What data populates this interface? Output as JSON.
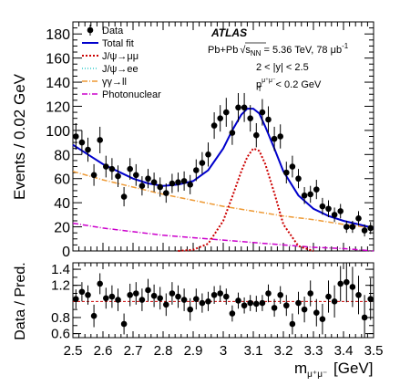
{
  "chart_data": {
    "type": "scatter",
    "xlim": [
      2.5,
      3.5
    ],
    "x_ticks": [
      2.5,
      2.6,
      2.7,
      2.8,
      2.9,
      3.0,
      3.1,
      3.2,
      3.3,
      3.4,
      3.5
    ],
    "x_tick_labels": [
      "2.5",
      "2.6",
      "2.7",
      "2.8",
      "2.9",
      "3",
      "3.1",
      "3.2",
      "3.3",
      "3.4",
      "3.5"
    ],
    "xlabel_main": "m",
    "xlabel_sub": "μ⁺μ⁻",
    "xlabel_unit": "[GeV]",
    "top": {
      "ylabel": "Events / 0.02 GeV",
      "ylim": [
        0,
        190
      ],
      "y_ticks": [
        0,
        20,
        40,
        60,
        80,
        100,
        120,
        140,
        160,
        180
      ],
      "y_tick_labels": [
        "0",
        "20",
        "40",
        "60",
        "80",
        "100",
        "120",
        "140",
        "160",
        "180"
      ]
    },
    "bottom": {
      "ylabel": "Data / Pred.",
      "ylim": [
        0.55,
        1.48
      ],
      "y_ticks": [
        0.6,
        0.8,
        1.2,
        1.4
      ],
      "y_tick_labels": [
        "0.6",
        "0.8",
        "1.2",
        "1.4"
      ],
      "reference_line": 1.0
    },
    "annotations": {
      "experiment": "ATLAS",
      "system": "Pb+Pb",
      "sqrt_label": "s",
      "sqrt_sub": "NN",
      "energy": " = 5.36 TeV, 78 μb",
      "lumi_exp": "-1",
      "rapidity_cut": "2 < |y| < 2.5",
      "pt_symbol": "p",
      "pt_sup": "μ⁺μ⁻",
      "pt_sub": "T",
      "pt_cut": " < 0.2 GeV"
    },
    "legend": [
      {
        "key": "data",
        "label": "Data",
        "color": "#000000"
      },
      {
        "key": "total",
        "label": "Total fit",
        "color": "#0000cc"
      },
      {
        "key": "jpsi_mumu",
        "label": "J/ψ→μμ",
        "color": "#cc0000"
      },
      {
        "key": "jpsi_ee",
        "label": "J/ψ→ee",
        "color": "#33cccc"
      },
      {
        "key": "gg_ll",
        "label": "γγ→ll",
        "color": "#ee9933"
      },
      {
        "key": "photonuclear",
        "label": "Photonuclear",
        "color": "#cc00cc"
      }
    ],
    "data": {
      "x": [
        2.51,
        2.53,
        2.55,
        2.57,
        2.59,
        2.61,
        2.63,
        2.65,
        2.67,
        2.69,
        2.71,
        2.73,
        2.75,
        2.77,
        2.79,
        2.81,
        2.83,
        2.85,
        2.87,
        2.89,
        2.91,
        2.93,
        2.95,
        2.97,
        2.99,
        3.01,
        3.03,
        3.05,
        3.07,
        3.09,
        3.11,
        3.13,
        3.15,
        3.17,
        3.19,
        3.21,
        3.23,
        3.25,
        3.27,
        3.29,
        3.31,
        3.33,
        3.35,
        3.37,
        3.39,
        3.41,
        3.43,
        3.45,
        3.47,
        3.49
      ],
      "y": [
        95,
        90,
        84,
        63,
        92,
        70,
        68,
        62,
        45,
        68,
        63,
        54,
        60,
        57,
        53,
        48,
        56,
        57,
        58,
        55,
        67,
        73,
        80,
        104,
        110,
        115,
        98,
        119,
        119,
        110,
        96,
        115,
        109,
        93,
        95,
        65,
        70,
        60,
        46,
        47,
        51,
        37,
        35,
        30,
        33,
        20,
        20,
        27,
        17,
        19
      ],
      "yerr": [
        11,
        10,
        10,
        9,
        11,
        9,
        9,
        9,
        8,
        9,
        9,
        8,
        8,
        8,
        8,
        8,
        8,
        8,
        8,
        8,
        9,
        9,
        10,
        11,
        11,
        12,
        10,
        12,
        12,
        11,
        10,
        11,
        11,
        10,
        10,
        9,
        9,
        8,
        7,
        7,
        8,
        7,
        7,
        6,
        6,
        5,
        5,
        6,
        5,
        5
      ]
    },
    "ratio": {
      "x": [
        2.51,
        2.53,
        2.55,
        2.57,
        2.59,
        2.61,
        2.63,
        2.65,
        2.67,
        2.69,
        2.71,
        2.73,
        2.75,
        2.77,
        2.79,
        2.81,
        2.83,
        2.85,
        2.87,
        2.89,
        2.91,
        2.93,
        2.95,
        2.97,
        2.99,
        3.01,
        3.03,
        3.05,
        3.07,
        3.09,
        3.11,
        3.13,
        3.15,
        3.17,
        3.19,
        3.21,
        3.23,
        3.25,
        3.27,
        3.29,
        3.31,
        3.33,
        3.35,
        3.37,
        3.39,
        3.41,
        3.43,
        3.45,
        3.47,
        3.49
      ],
      "y": [
        1.03,
        1.12,
        1.08,
        0.82,
        1.22,
        1.04,
        1.06,
        1.02,
        0.72,
        1.08,
        1.1,
        1.02,
        1.14,
        1.07,
        1.04,
        0.96,
        1.1,
        1.06,
        1.02,
        0.9,
        1.03,
        0.98,
        1.0,
        1.08,
        1.1,
        1.06,
        0.85,
        1.01,
        0.95,
        0.98,
        0.97,
        0.98,
        1.1,
        0.92,
        1.08,
        0.95,
        0.72,
        0.98,
        0.9,
        1.1,
        0.86,
        0.78,
        1.06,
        1.0,
        1.22,
        1.24,
        1.18,
        1.08,
        0.8,
        1.03
      ],
      "yerr": [
        0.12,
        0.12,
        0.12,
        0.14,
        0.13,
        0.13,
        0.14,
        0.14,
        0.13,
        0.14,
        0.14,
        0.14,
        0.14,
        0.14,
        0.14,
        0.14,
        0.14,
        0.14,
        0.14,
        0.14,
        0.13,
        0.12,
        0.12,
        0.11,
        0.1,
        0.1,
        0.1,
        0.1,
        0.1,
        0.1,
        0.1,
        0.1,
        0.11,
        0.11,
        0.11,
        0.13,
        0.13,
        0.14,
        0.16,
        0.16,
        0.17,
        0.19,
        0.2,
        0.2,
        0.22,
        0.25,
        0.25,
        0.24,
        0.28,
        0.26
      ]
    },
    "fit": {
      "total": {
        "x": [
          2.5,
          2.55,
          2.6,
          2.65,
          2.7,
          2.75,
          2.8,
          2.85,
          2.9,
          2.95,
          3.0,
          3.03,
          3.06,
          3.08,
          3.1,
          3.12,
          3.14,
          3.17,
          3.2,
          3.25,
          3.3,
          3.35,
          3.4,
          3.45,
          3.5
        ],
        "y": [
          88,
          80,
          72,
          66,
          60,
          56,
          54,
          55,
          58,
          67,
          85,
          100,
          113,
          118,
          118,
          114,
          103,
          85,
          66,
          46,
          35,
          29,
          25,
          22,
          19
        ]
      },
      "jpsi_mumu": {
        "x": [
          2.85,
          2.9,
          2.95,
          3.0,
          3.03,
          3.06,
          3.08,
          3.1,
          3.12,
          3.14,
          3.17,
          3.2,
          3.25,
          3.3
        ],
        "y": [
          0,
          1,
          6,
          25,
          45,
          66,
          78,
          85,
          83,
          72,
          48,
          22,
          4,
          0
        ]
      },
      "gg_ll": {
        "x": [
          2.5,
          2.6,
          2.7,
          2.8,
          2.9,
          3.0,
          3.1,
          3.2,
          3.3,
          3.4,
          3.5
        ],
        "y": [
          66,
          59,
          53,
          47,
          42,
          37,
          33,
          29,
          26,
          22,
          19
        ]
      },
      "photonuclear": {
        "x": [
          2.5,
          2.6,
          2.7,
          2.8,
          2.9,
          3.0,
          3.1,
          3.2,
          3.3,
          3.4,
          3.5
        ],
        "y": [
          23,
          19,
          16,
          13,
          11,
          9,
          7,
          5,
          3,
          2,
          0
        ]
      }
    }
  }
}
